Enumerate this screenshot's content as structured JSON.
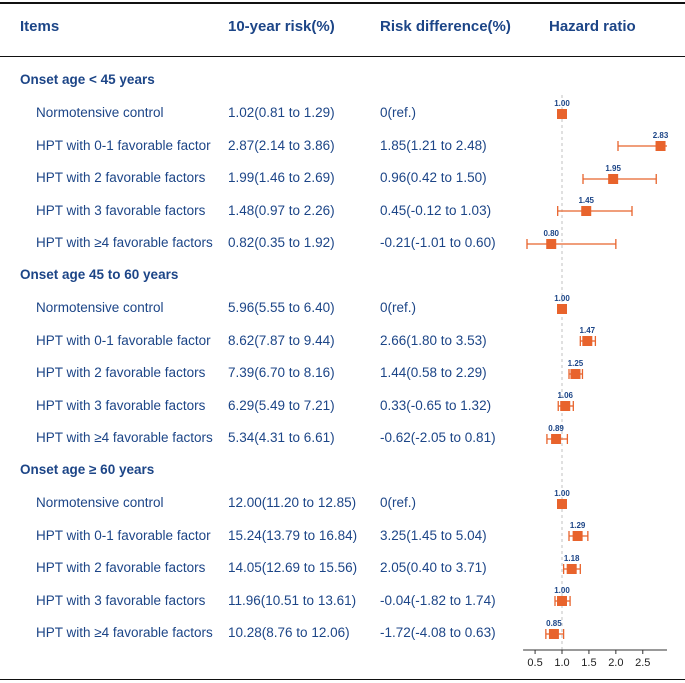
{
  "header": {
    "items": "Items",
    "risk": "10-year risk(%)",
    "diff": "Risk difference(%)",
    "hr": "Hazard ratio"
  },
  "groups": [
    {
      "title": "Onset age < 45 years",
      "rows": [
        {
          "item": "Normotensive control",
          "risk": "1.02(0.81 to 1.29)",
          "diff": "0(ref.)"
        },
        {
          "item": "HPT with 0-1 favorable factor",
          "risk": "2.87(2.14 to 3.86)",
          "diff": "1.85(1.21 to 2.48)"
        },
        {
          "item": "HPT with 2 favorable factors",
          "risk": "1.99(1.46 to 2.69)",
          "diff": "0.96(0.42 to 1.50)"
        },
        {
          "item": "HPT with 3 favorable factors",
          "risk": "1.48(0.97 to 2.26)",
          "diff": "0.45(-0.12 to 1.03)"
        },
        {
          "item": "HPT with ≥4 favorable factors",
          "risk": "0.82(0.35 to 1.92)",
          "diff": "-0.21(-1.01 to 0.60)"
        }
      ]
    },
    {
      "title": "Onset age 45 to 60 years",
      "rows": [
        {
          "item": "Normotensive control",
          "risk": "5.96(5.55 to 6.40)",
          "diff": "0(ref.)"
        },
        {
          "item": "HPT with 0-1 favorable factor",
          "risk": "8.62(7.87 to 9.44)",
          "diff": "2.66(1.80 to 3.53)"
        },
        {
          "item": "HPT with 2 favorable factors",
          "risk": "7.39(6.70 to 8.16)",
          "diff": "1.44(0.58 to 2.29)"
        },
        {
          "item": "HPT with 3 favorable factors",
          "risk": "6.29(5.49 to 7.21)",
          "diff": "0.33(-0.65 to 1.32)"
        },
        {
          "item": "HPT with ≥4 favorable factors",
          "risk": "5.34(4.31 to 6.61)",
          "diff": "-0.62(-2.05 to 0.81)"
        }
      ]
    },
    {
      "title": "Onset age ≥ 60 years",
      "rows": [
        {
          "item": "Normotensive control",
          "risk": "12.00(11.20 to 12.85)",
          "diff": "0(ref.)"
        },
        {
          "item": "HPT with 0-1 favorable factor",
          "risk": "15.24(13.79 to 16.84)",
          "diff": "3.25(1.45 to 5.04)"
        },
        {
          "item": "HPT with 2 favorable factors",
          "risk": "14.05(12.69 to 15.56)",
          "diff": "2.05(0.40 to 3.71)"
        },
        {
          "item": "HPT with 3 favorable factors",
          "risk": "11.96(10.51 to 13.61)",
          "diff": "-0.04(-1.82 to 1.74)"
        },
        {
          "item": "HPT with ≥4 favorable factors",
          "risk": "10.28(8.76 to 12.06)",
          "diff": "-1.72(-4.08 to 0.63)"
        }
      ]
    }
  ],
  "chart_data": {
    "type": "forest",
    "title": "Hazard ratio",
    "xlim": [
      0.35,
      2.95
    ],
    "xticks": [
      0.5,
      1.0,
      1.5,
      2.0,
      2.5
    ],
    "xtick_labels": [
      "0.5",
      "1.0",
      "1.5",
      "2.0",
      "2.5"
    ],
    "reference_line": 1.0,
    "colors": {
      "marker": "#e8632c",
      "text": "#1c4587",
      "reference": "#c0c0c0",
      "axis": "#333333"
    },
    "points": [
      {
        "label": "1.00",
        "hr": 1.0,
        "lo": 1.0,
        "hi": 1.0
      },
      {
        "label": "2.83",
        "hr": 2.83,
        "lo": 2.04,
        "hi": 2.95
      },
      {
        "label": "1.95",
        "hr": 1.95,
        "lo": 1.39,
        "hi": 2.75
      },
      {
        "label": "1.45",
        "hr": 1.45,
        "lo": 0.92,
        "hi": 2.3
      },
      {
        "label": "0.80",
        "hr": 0.8,
        "lo": 0.35,
        "hi": 2.0
      },
      {
        "label": "1.00",
        "hr": 1.0,
        "lo": 1.0,
        "hi": 1.0
      },
      {
        "label": "1.47",
        "hr": 1.47,
        "lo": 1.34,
        "hi": 1.62
      },
      {
        "label": "1.25",
        "hr": 1.25,
        "lo": 1.13,
        "hi": 1.38
      },
      {
        "label": "1.06",
        "hr": 1.06,
        "lo": 0.93,
        "hi": 1.21
      },
      {
        "label": "0.89",
        "hr": 0.89,
        "lo": 0.72,
        "hi": 1.1
      },
      {
        "label": "1.00",
        "hr": 1.0,
        "lo": 1.0,
        "hi": 1.0
      },
      {
        "label": "1.29",
        "hr": 1.29,
        "lo": 1.13,
        "hi": 1.48
      },
      {
        "label": "1.18",
        "hr": 1.18,
        "lo": 1.03,
        "hi": 1.34
      },
      {
        "label": "1.00",
        "hr": 1.0,
        "lo": 0.87,
        "hi": 1.15
      },
      {
        "label": "0.85",
        "hr": 0.85,
        "lo": 0.7,
        "hi": 1.03
      }
    ]
  }
}
